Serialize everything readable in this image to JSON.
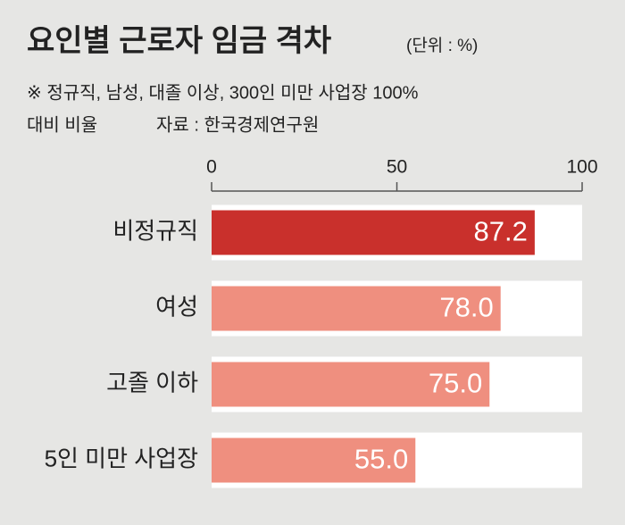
{
  "chart_data": {
    "type": "hbar",
    "title": "요인별 근로자 임금 격차",
    "unit": "(단위 : %)",
    "note": [
      "※ 정규직, 남성, 대졸 이상, 300인 미만 사업장 100%",
      "대비 비율"
    ],
    "source": "자료 : 한국경제연구원",
    "categories": [
      "비정규직",
      "여성",
      "고졸 이하",
      "5인 미만 사업장"
    ],
    "values": [
      87.2,
      78.0,
      75.0,
      55.0
    ],
    "value_labels": [
      "87.2",
      "78.0",
      "75.0",
      "55.0"
    ],
    "colors": [
      "#c9302c",
      "#ef8f7f",
      "#ef8f7f",
      "#ef8f7f"
    ],
    "xlim": [
      0,
      100
    ],
    "xticks": [
      0,
      50,
      100
    ]
  }
}
